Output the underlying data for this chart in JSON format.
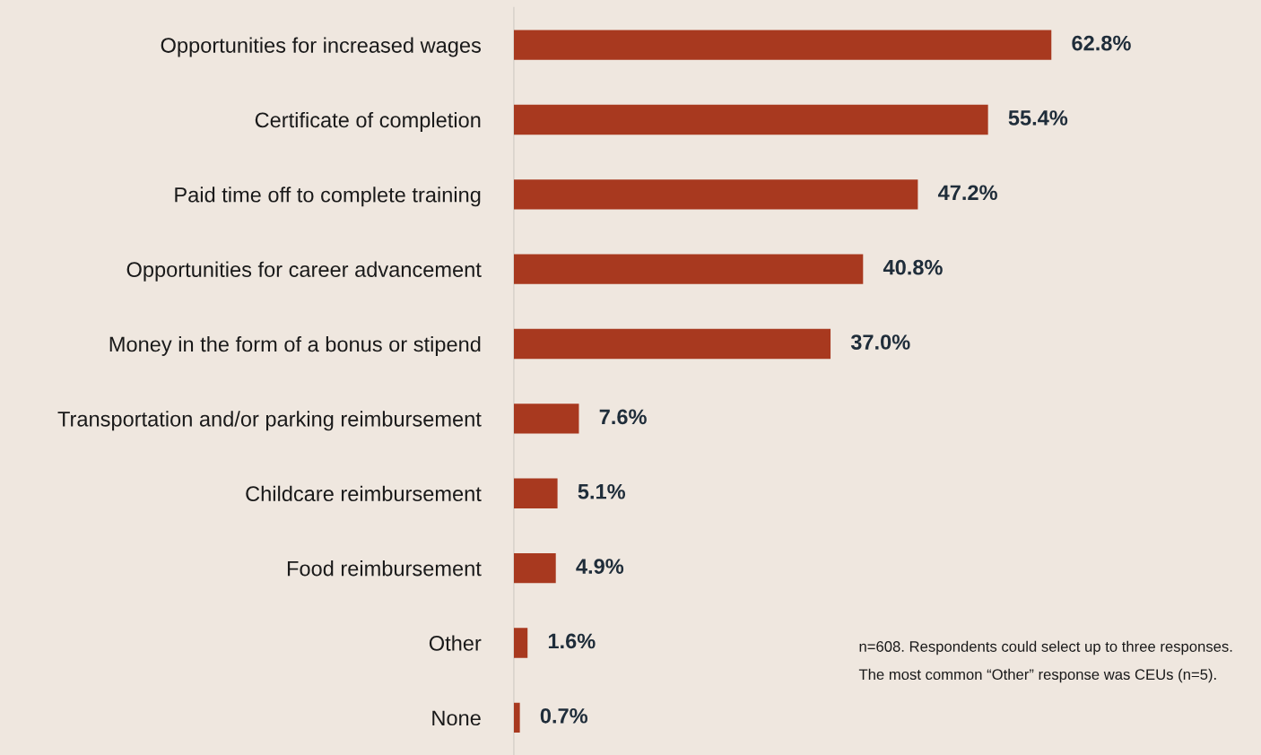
{
  "chart_data": {
    "type": "bar",
    "orientation": "horizontal",
    "categories": [
      "Opportunities for increased wages",
      "Certificate of completion",
      "Paid time off to complete training",
      "Opportunities for career advancement",
      "Money in the form of a bonus or stipend",
      "Transportation and/or parking reimbursement",
      "Childcare reimbursement",
      "Food reimbursement",
      "Other",
      "None"
    ],
    "values": [
      62.8,
      55.4,
      47.2,
      40.8,
      37.0,
      7.6,
      5.1,
      4.9,
      1.6,
      0.7
    ],
    "value_labels": [
      "62.8%",
      "55.4%",
      "47.2%",
      "40.8%",
      "37.0%",
      "7.6%",
      "5.1%",
      "4.9%",
      "1.6%",
      "0.7%"
    ],
    "color": "#a8391f",
    "annotations": [
      "n=608. Respondents could select up to three responses.",
      "The most common “Other” response was CEUs (n=5)."
    ]
  }
}
